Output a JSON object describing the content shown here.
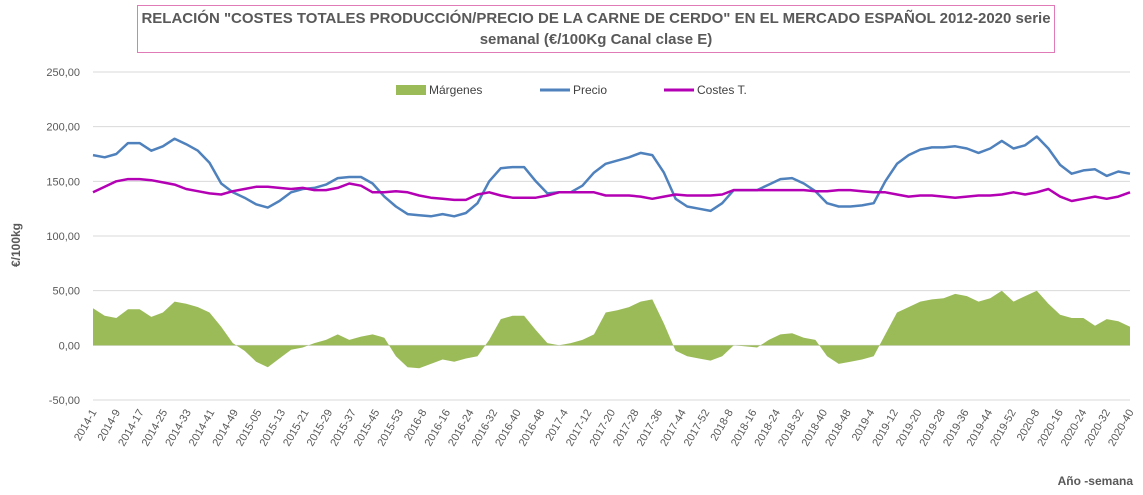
{
  "title": {
    "line1": "RELACIÓN \"COSTES TOTALES PRODUCCIÓN/PRECIO DE LA CARNE DE CERDO\" EN EL MERCADO ESPAÑOL 2012-2020 serie",
    "line2": "semanal (€/100Kg Canal clase E)"
  },
  "chart_data": {
    "type": "line",
    "title": "RELACIÓN \"COSTES TOTALES PRODUCCIÓN/PRECIO DE LA CARNE DE CERDO\" EN EL MERCADO ESPAÑOL 2012-2020 serie semanal (€/100Kg Canal clase E)",
    "xlabel": "Año -semana",
    "ylabel": "€/100kg",
    "ylim": [
      -50,
      250
    ],
    "y_ticks": [
      "-50,00",
      "0,00",
      "50,00",
      "100,00",
      "150,00",
      "200,00",
      "250,00"
    ],
    "y_tick_values": [
      -50,
      0,
      50,
      100,
      150,
      200,
      250
    ],
    "grid": true,
    "legend_position": "top",
    "x_tick_labels": [
      "2014-1",
      "2014-9",
      "2014-17",
      "2014-25",
      "2014-33",
      "2014-41",
      "2014-49",
      "2015-05",
      "2015-13",
      "2015-21",
      "2015-29",
      "2015-37",
      "2015-45",
      "2015-53",
      "2016-8",
      "2016-16",
      "2016-24",
      "2016-32",
      "2016-40",
      "2016-48",
      "2017-4",
      "2017-12",
      "2017-20",
      "2017-28",
      "2017-36",
      "2017-44",
      "2017-52",
      "2018-8",
      "2018-16",
      "2018-24",
      "2018-32",
      "2018-40",
      "2018-48",
      "2019-4",
      "2019-12",
      "2019-20",
      "2019-28",
      "2019-36",
      "2019-44",
      "2019-52",
      "2020-8",
      "2020-16",
      "2020-24",
      "2020-32",
      "2020-40"
    ],
    "series": [
      {
        "name": "Márgenes",
        "kind": "area",
        "color": "#9bbb59",
        "values": [
          34,
          27,
          25,
          33,
          33,
          26,
          30,
          40,
          38,
          35,
          30,
          17,
          2,
          -5,
          -15,
          -20,
          -12,
          -4,
          -2,
          2,
          5,
          10,
          5,
          8,
          10,
          7,
          -10,
          -20,
          -21,
          -17,
          -13,
          -15,
          -12,
          -10,
          5,
          24,
          27,
          27,
          14,
          2,
          0,
          2,
          5,
          10,
          30,
          32,
          35,
          40,
          42,
          20,
          -5,
          -10,
          -12,
          -14,
          -10,
          0,
          -1,
          -2,
          5,
          10,
          11,
          7,
          5,
          -10,
          -17,
          -15,
          -13,
          -10,
          10,
          30,
          35,
          40,
          42,
          43,
          47,
          45,
          40,
          43,
          50,
          40,
          45,
          50,
          38,
          28,
          25,
          25,
          18,
          24,
          22,
          17
        ]
      },
      {
        "name": "Precio",
        "kind": "line",
        "color": "#4f81bd",
        "values": [
          174,
          172,
          175,
          185,
          185,
          178,
          182,
          189,
          184,
          178,
          167,
          148,
          140,
          135,
          129,
          126,
          132,
          140,
          143,
          144,
          147,
          153,
          154,
          154,
          148,
          136,
          127,
          120,
          119,
          118,
          120,
          118,
          121,
          130,
          150,
          162,
          163,
          163,
          150,
          139,
          140,
          140,
          146,
          158,
          166,
          169,
          172,
          176,
          174,
          158,
          134,
          127,
          125,
          123,
          130,
          142,
          142,
          142,
          147,
          152,
          153,
          148,
          141,
          130,
          127,
          127,
          128,
          130,
          150,
          166,
          174,
          179,
          181,
          181,
          182,
          180,
          176,
          180,
          187,
          180,
          183,
          191,
          180,
          165,
          157,
          160,
          161,
          155,
          159,
          157
        ]
      },
      {
        "name": "Costes T.",
        "kind": "line",
        "color": "#b400b4",
        "values": [
          140,
          145,
          150,
          152,
          152,
          151,
          149,
          147,
          143,
          141,
          139,
          138,
          141,
          143,
          145,
          145,
          144,
          143,
          144,
          142,
          142,
          144,
          148,
          146,
          140,
          140,
          141,
          140,
          137,
          135,
          134,
          133,
          133,
          138,
          140,
          137,
          135,
          135,
          135,
          137,
          140,
          140,
          140,
          140,
          137,
          137,
          137,
          136,
          134,
          136,
          138,
          137,
          137,
          137,
          138,
          142,
          142,
          142,
          142,
          142,
          142,
          142,
          141,
          141,
          142,
          142,
          141,
          140,
          140,
          138,
          136,
          137,
          137,
          136,
          135,
          136,
          137,
          137,
          138,
          140,
          138,
          140,
          143,
          136,
          132,
          134,
          136,
          134,
          136,
          140
        ]
      }
    ]
  }
}
